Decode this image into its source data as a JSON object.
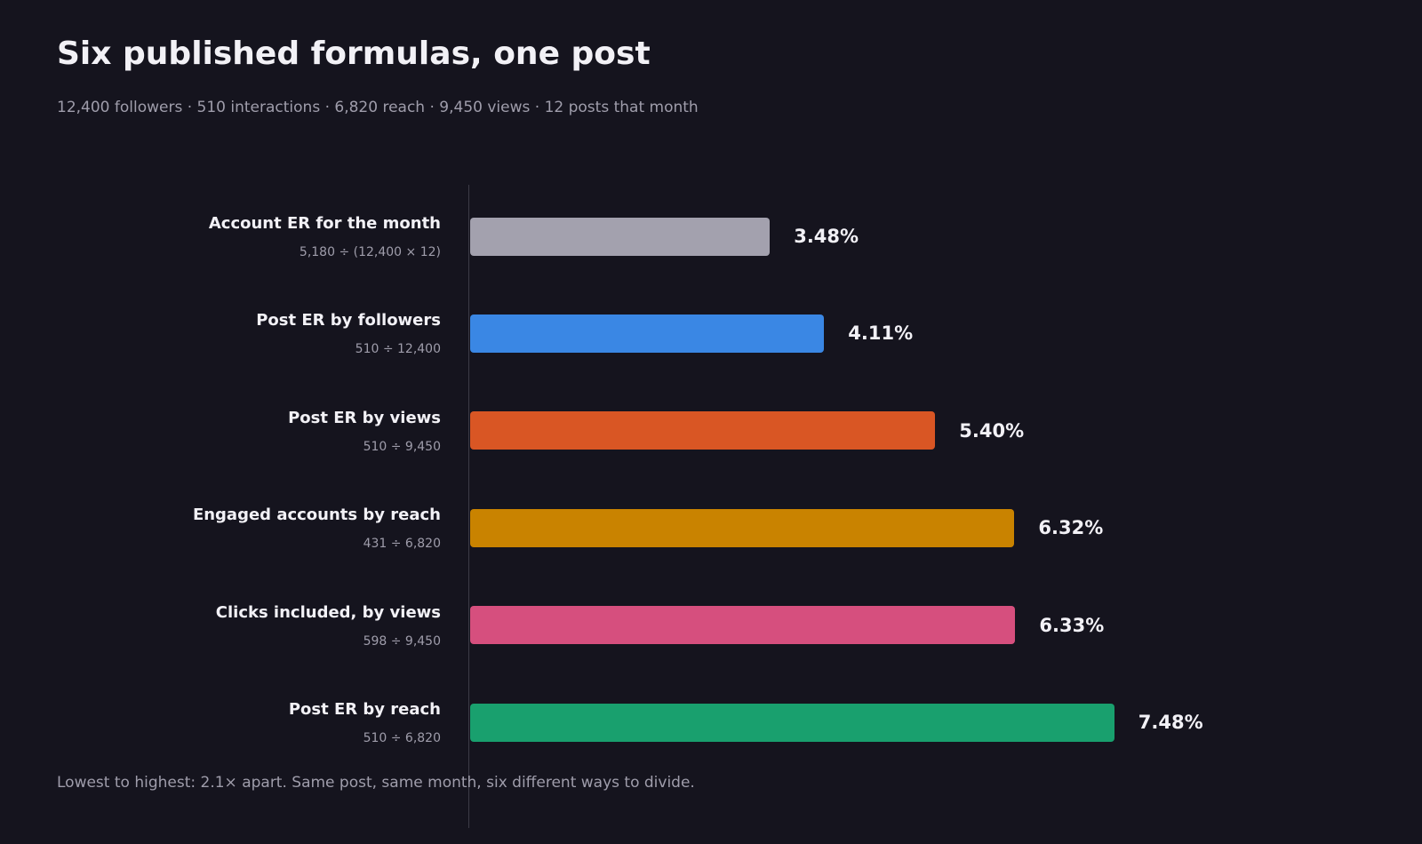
{
  "header": {
    "title": "Six published formulas, one post",
    "subtitle": "12,400 followers · 510 interactions · 6,820 reach · 9,450 views · 12 posts that month"
  },
  "footnote": "Lowest to highest: 2.1× apart. Same post, same month, six different ways to divide.",
  "chart_data": {
    "type": "bar",
    "orientation": "horizontal",
    "title": "Six published formulas, one post",
    "xlabel": "",
    "ylabel": "",
    "grid": false,
    "legend": "none",
    "categories": [
      "Account ER for the month",
      "Post ER by followers",
      "Post ER by views",
      "Engaged accounts by reach",
      "Clicks included, by views",
      "Post ER by reach"
    ],
    "formulas": [
      "5,180 ÷ (12,400 × 12)",
      "510 ÷ 12,400",
      "510 ÷ 9,450",
      "431 ÷ 6,820",
      "598 ÷ 9,450",
      "510 ÷ 6,820"
    ],
    "values": [
      3.48,
      4.11,
      5.4,
      6.32,
      6.33,
      7.48
    ],
    "value_labels": [
      "3.48%",
      "4.11%",
      "5.40%",
      "6.32%",
      "6.33%",
      "7.48%"
    ],
    "colors": [
      "#a3a1ae",
      "#3a87e4",
      "#d95624",
      "#c98300",
      "#d64f7e",
      "#19a06e"
    ],
    "xlim": [
      0,
      8.0
    ]
  }
}
